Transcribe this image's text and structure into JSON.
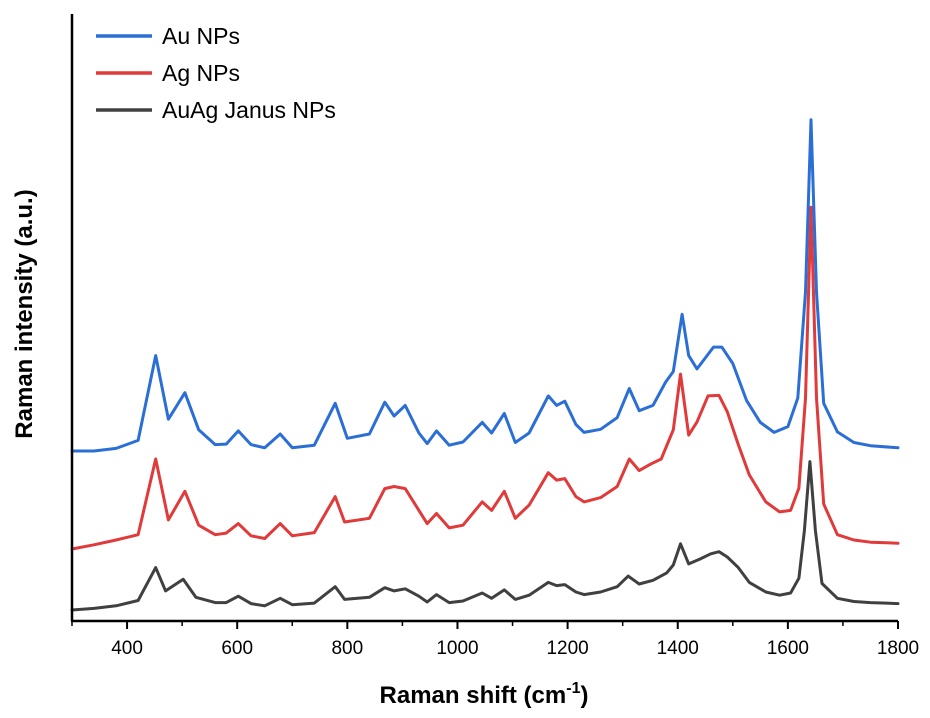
{
  "chart_data": {
    "type": "line",
    "xlabel": "Raman shift (cm",
    "xlabel_sup": "-1",
    "xlabel_end": ")",
    "ylabel": "Raman intensity (a.u.)",
    "xlim": [
      300,
      1800
    ],
    "ylim": [
      0,
      100
    ],
    "x_ticks": [
      400,
      600,
      800,
      1000,
      1200,
      1400,
      1600,
      1800
    ],
    "y_ticks_shown": false,
    "grid": false,
    "legend_position": "top-left",
    "series": [
      {
        "name": "Au NPs",
        "color": "#2b6fd6",
        "baseline": 30,
        "points": [
          [
            300,
            30
          ],
          [
            340,
            30
          ],
          [
            380,
            30.5
          ],
          [
            420,
            32
          ],
          [
            452,
            48
          ],
          [
            475,
            36
          ],
          [
            505,
            41
          ],
          [
            530,
            34
          ],
          [
            560,
            31.2
          ],
          [
            580,
            31.3
          ],
          [
            602,
            33.8
          ],
          [
            625,
            31.2
          ],
          [
            650,
            30.6
          ],
          [
            678,
            33.2
          ],
          [
            700,
            30.6
          ],
          [
            740,
            31.1
          ],
          [
            778,
            39
          ],
          [
            800,
            32.4
          ],
          [
            840,
            33.2
          ],
          [
            868,
            39.2
          ],
          [
            885,
            36.6
          ],
          [
            905,
            38.6
          ],
          [
            930,
            33.4
          ],
          [
            945,
            31.4
          ],
          [
            962,
            33.8
          ],
          [
            985,
            31.1
          ],
          [
            1010,
            31.7
          ],
          [
            1045,
            35.4
          ],
          [
            1062,
            33.4
          ],
          [
            1085,
            37.1
          ],
          [
            1105,
            31.6
          ],
          [
            1130,
            33.4
          ],
          [
            1165,
            40.4
          ],
          [
            1180,
            38.6
          ],
          [
            1195,
            39.4
          ],
          [
            1215,
            35
          ],
          [
            1230,
            33.5
          ],
          [
            1260,
            34.1
          ],
          [
            1290,
            36.3
          ],
          [
            1312,
            41.8
          ],
          [
            1330,
            37.6
          ],
          [
            1355,
            38.6
          ],
          [
            1378,
            43
          ],
          [
            1392,
            45
          ],
          [
            1408,
            55.8
          ],
          [
            1420,
            48
          ],
          [
            1435,
            45.5
          ],
          [
            1465,
            49.6
          ],
          [
            1480,
            49.6
          ],
          [
            1500,
            46.5
          ],
          [
            1525,
            39.5
          ],
          [
            1550,
            35.4
          ],
          [
            1575,
            33.5
          ],
          [
            1600,
            34.6
          ],
          [
            1618,
            40
          ],
          [
            1632,
            60
          ],
          [
            1642,
            92.5
          ],
          [
            1652,
            60
          ],
          [
            1665,
            39
          ],
          [
            1690,
            33.6
          ],
          [
            1720,
            31.6
          ],
          [
            1750,
            31
          ],
          [
            1800,
            30.6
          ]
        ]
      },
      {
        "name": "Ag NPs",
        "color": "#e03a3a",
        "baseline": 11.5,
        "points": [
          [
            300,
            11.5
          ],
          [
            340,
            12.3
          ],
          [
            380,
            13.2
          ],
          [
            420,
            14.2
          ],
          [
            452,
            28.5
          ],
          [
            475,
            17
          ],
          [
            505,
            22.4
          ],
          [
            530,
            16
          ],
          [
            560,
            14.2
          ],
          [
            580,
            14.5
          ],
          [
            602,
            16.3
          ],
          [
            625,
            14
          ],
          [
            650,
            13.5
          ],
          [
            678,
            16.3
          ],
          [
            700,
            14
          ],
          [
            740,
            14.6
          ],
          [
            778,
            21.4
          ],
          [
            795,
            16.6
          ],
          [
            840,
            17.3
          ],
          [
            868,
            22.9
          ],
          [
            885,
            23.3
          ],
          [
            905,
            22.9
          ],
          [
            930,
            18.8
          ],
          [
            945,
            16.3
          ],
          [
            962,
            18.2
          ],
          [
            985,
            15.5
          ],
          [
            1010,
            16
          ],
          [
            1045,
            20.4
          ],
          [
            1062,
            18.8
          ],
          [
            1085,
            22.4
          ],
          [
            1105,
            17.3
          ],
          [
            1130,
            19.8
          ],
          [
            1165,
            25.9
          ],
          [
            1180,
            24.5
          ],
          [
            1195,
            24.8
          ],
          [
            1215,
            21.4
          ],
          [
            1230,
            20.4
          ],
          [
            1260,
            21.2
          ],
          [
            1290,
            23.3
          ],
          [
            1312,
            28.5
          ],
          [
            1330,
            26.3
          ],
          [
            1350,
            27.5
          ],
          [
            1370,
            28.5
          ],
          [
            1392,
            34
          ],
          [
            1405,
            44.5
          ],
          [
            1420,
            33
          ],
          [
            1435,
            35.5
          ],
          [
            1455,
            40.4
          ],
          [
            1475,
            40.5
          ],
          [
            1490,
            37.4
          ],
          [
            1510,
            31.2
          ],
          [
            1530,
            25.5
          ],
          [
            1560,
            20.4
          ],
          [
            1585,
            18.5
          ],
          [
            1605,
            18.8
          ],
          [
            1620,
            23
          ],
          [
            1632,
            40
          ],
          [
            1642,
            76
          ],
          [
            1652,
            40
          ],
          [
            1665,
            20
          ],
          [
            1690,
            14.2
          ],
          [
            1720,
            13.2
          ],
          [
            1750,
            12.8
          ],
          [
            1800,
            12.6
          ]
        ]
      },
      {
        "name": "AuAg Janus NPs",
        "color": "#404040",
        "baseline": 0,
        "points": [
          [
            300,
            0
          ],
          [
            340,
            0.3
          ],
          [
            380,
            0.8
          ],
          [
            420,
            1.8
          ],
          [
            452,
            8
          ],
          [
            470,
            3.6
          ],
          [
            502,
            5.8
          ],
          [
            525,
            2.4
          ],
          [
            560,
            1.4
          ],
          [
            580,
            1.4
          ],
          [
            602,
            2.6
          ],
          [
            625,
            1.2
          ],
          [
            650,
            0.8
          ],
          [
            678,
            2.2
          ],
          [
            700,
            1
          ],
          [
            740,
            1.3
          ],
          [
            778,
            4.4
          ],
          [
            795,
            2
          ],
          [
            840,
            2.4
          ],
          [
            868,
            4.2
          ],
          [
            885,
            3.6
          ],
          [
            905,
            4
          ],
          [
            930,
            2.6
          ],
          [
            945,
            1.5
          ],
          [
            962,
            2.9
          ],
          [
            985,
            1.4
          ],
          [
            1010,
            1.7
          ],
          [
            1045,
            3.2
          ],
          [
            1062,
            2.2
          ],
          [
            1085,
            3.8
          ],
          [
            1105,
            2
          ],
          [
            1130,
            2.8
          ],
          [
            1165,
            5.2
          ],
          [
            1180,
            4.6
          ],
          [
            1195,
            4.8
          ],
          [
            1215,
            3.4
          ],
          [
            1230,
            2.9
          ],
          [
            1260,
            3.4
          ],
          [
            1290,
            4.4
          ],
          [
            1310,
            6.4
          ],
          [
            1330,
            4.9
          ],
          [
            1355,
            5.6
          ],
          [
            1380,
            7
          ],
          [
            1392,
            8.5
          ],
          [
            1405,
            12.5
          ],
          [
            1420,
            8.7
          ],
          [
            1440,
            9.6
          ],
          [
            1460,
            10.6
          ],
          [
            1475,
            11
          ],
          [
            1490,
            10
          ],
          [
            1510,
            8
          ],
          [
            1530,
            5.2
          ],
          [
            1560,
            3.4
          ],
          [
            1585,
            2.8
          ],
          [
            1605,
            3.2
          ],
          [
            1620,
            6
          ],
          [
            1630,
            15
          ],
          [
            1640,
            28
          ],
          [
            1650,
            15
          ],
          [
            1662,
            5
          ],
          [
            1690,
            2.2
          ],
          [
            1720,
            1.6
          ],
          [
            1750,
            1.4
          ],
          [
            1800,
            1.2
          ]
        ]
      }
    ]
  }
}
